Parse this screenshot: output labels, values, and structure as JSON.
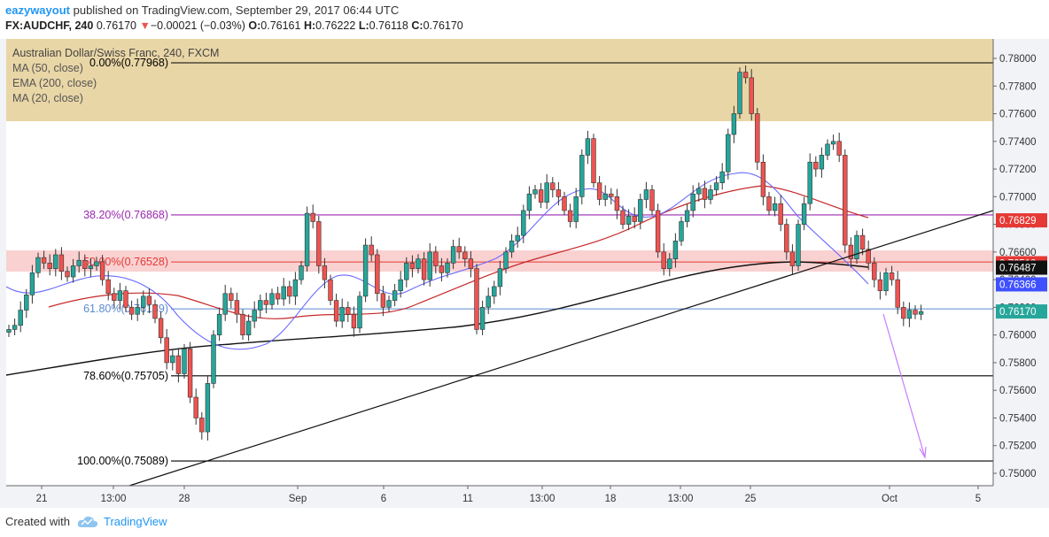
{
  "header": {
    "username": "eazywayout",
    "published_text": "published on TradingView.com, September 29, 2017 06:44 UTC",
    "symbol_label": "FX:AUDCHF, 240",
    "last_price": "0.76170",
    "change_arrow": "▼",
    "change": "−0.00021 (−0.03%)",
    "open_label": "O:",
    "open": "0.76161",
    "high_label": "H:",
    "high": "0.76222",
    "low_label": "L:",
    "low": "0.76118",
    "close_label": "C:",
    "close": "0.76170"
  },
  "legend": {
    "title": "Australian Dollar/Swiss Franc, 240, FXCM",
    "items": [
      "MA (50, close)",
      "EMA (200, close)",
      "MA (20, close)"
    ]
  },
  "fib_levels": [
    {
      "label": "0.00%(0.77968)",
      "price": 0.77968,
      "color": "#000000"
    },
    {
      "label": "38.20%(0.76868)",
      "price": 0.76868,
      "color": "#9c27b0"
    },
    {
      "label": "50.00%(0.76528)",
      "price": 0.76528,
      "color": "#e53935"
    },
    {
      "label": "61.80%(0.76189)",
      "price": 0.76189,
      "color": "#5b8bd0"
    },
    {
      "label": "78.60%(0.75705)",
      "price": 0.75705,
      "color": "#000000"
    },
    {
      "label": "100.00%(0.75089)",
      "price": 0.75089,
      "color": "#000000"
    }
  ],
  "price_axis": {
    "ticks": [
      "0.78000",
      "0.77800",
      "0.77600",
      "0.77400",
      "0.77200",
      "0.77000",
      "0.76800",
      "0.76600",
      "0.76400",
      "0.76200",
      "0.76000",
      "0.75800",
      "0.75600",
      "0.75400",
      "0.75200",
      "0.75000"
    ],
    "badges": [
      {
        "text": "0.76829",
        "price": 0.76829,
        "color": "#e53935"
      },
      {
        "text": "0.76519",
        "price": 0.76519,
        "color": "#e53935"
      },
      {
        "text": "0.76487",
        "price": 0.76487,
        "color": "#111111"
      },
      {
        "text": "0.76366",
        "price": 0.76366,
        "color": "#3f51ff"
      },
      {
        "text": "0.76170",
        "price": 0.7617,
        "color": "#26a69a"
      }
    ]
  },
  "time_axis": {
    "labels": [
      "21",
      "13:00",
      "28",
      "Sep",
      "6",
      "11",
      "13:00",
      "18",
      "13:00",
      "25",
      "Oct",
      "5"
    ]
  },
  "colors": {
    "up": "#26a69a",
    "down": "#ef5350",
    "ma50": "#c62828",
    "ema200": "#111111",
    "ma20": "#6a6aff"
  },
  "footer": {
    "created_with": "Created with",
    "brand": "TradingView"
  }
}
